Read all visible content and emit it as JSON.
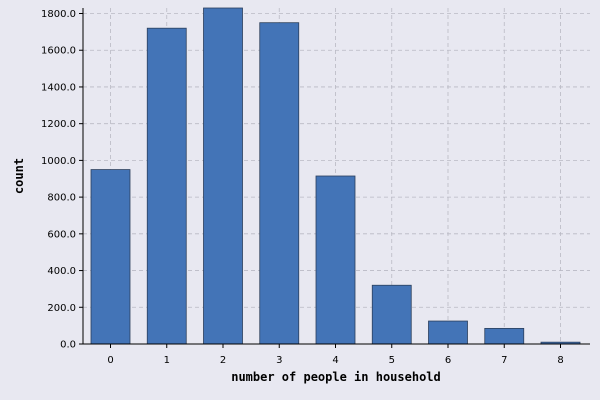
{
  "chart_data": {
    "type": "bar",
    "title": "",
    "xlabel": "number of people in household",
    "ylabel": "count",
    "categories": [
      "0",
      "1",
      "2",
      "3",
      "4",
      "5",
      "6",
      "7",
      "8"
    ],
    "values": [
      950,
      1720,
      1830,
      1750,
      915,
      320,
      125,
      85,
      10
    ],
    "ylim": [
      0,
      1830
    ],
    "yticks": [
      0,
      200,
      400,
      600,
      800,
      1000,
      1200,
      1400,
      1600,
      1800
    ],
    "ytick_labels": [
      "0.0",
      "200.0",
      "400.0",
      "600.0",
      "800.0",
      "1000.0",
      "1200.0",
      "1400.0",
      "1600.0",
      "1800.0"
    ],
    "grid": true,
    "bar_color": "#4374b7",
    "background_color": "#e8e8f1"
  }
}
